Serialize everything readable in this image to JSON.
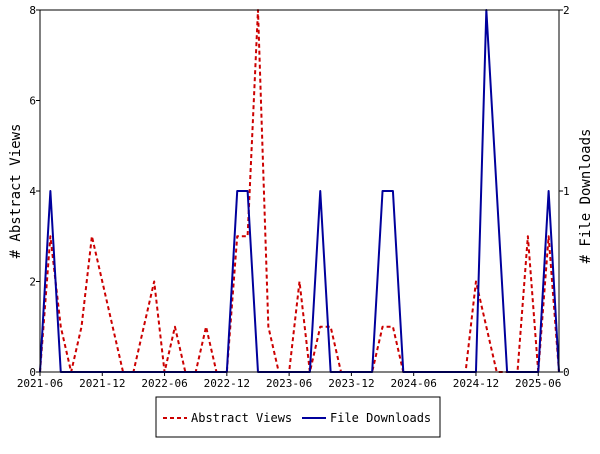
{
  "chart_data": {
    "type": "line",
    "title": "",
    "xlabel": "",
    "ylabel_left": "# Abstract Views",
    "ylabel_right": "# File Downloads",
    "x_tick_labels": [
      "2021-06",
      "2021-12",
      "2022-06",
      "2022-12",
      "2023-06",
      "2023-12",
      "2024-06",
      "2024-12",
      "2025-06"
    ],
    "ylim_left": [
      0,
      8
    ],
    "ylim_right": [
      0,
      2
    ],
    "y_ticks_left": [
      "0",
      "2",
      "4",
      "6",
      "8"
    ],
    "y_ticks_right": [
      "0",
      "1",
      "2"
    ],
    "grid": false,
    "legend_position": "bottom",
    "series": [
      {
        "name": "Abstract Views",
        "axis": "left",
        "color": "#cc0000",
        "dash": true,
        "points": [
          [
            "2021-06",
            0
          ],
          [
            "2021-07",
            3
          ],
          [
            "2021-08",
            1
          ],
          [
            "2021-09",
            0
          ],
          [
            "2021-10",
            1
          ],
          [
            "2021-11",
            3
          ],
          [
            "2021-12",
            2
          ],
          [
            "2022-01",
            1
          ],
          [
            "2022-02",
            0
          ],
          [
            "2022-03",
            0
          ],
          [
            "2022-04",
            1
          ],
          [
            "2022-05",
            2
          ],
          [
            "2022-06",
            0
          ],
          [
            "2022-07",
            1
          ],
          [
            "2022-08",
            0
          ],
          [
            "2022-09",
            0
          ],
          [
            "2022-10",
            1
          ],
          [
            "2022-11",
            0
          ],
          [
            "2022-12",
            0
          ],
          [
            "2023-01",
            3
          ],
          [
            "2023-02",
            3
          ],
          [
            "2023-03",
            8
          ],
          [
            "2023-04",
            1
          ],
          [
            "2023-05",
            0
          ],
          [
            "2023-06",
            0
          ],
          [
            "2023-07",
            2
          ],
          [
            "2023-08",
            0
          ],
          [
            "2023-09",
            1
          ],
          [
            "2023-10",
            1
          ],
          [
            "2023-11",
            0
          ],
          [
            "2023-12",
            0
          ],
          [
            "2024-01",
            0
          ],
          [
            "2024-02",
            0
          ],
          [
            "2024-03",
            1
          ],
          [
            "2024-04",
            1
          ],
          [
            "2024-05",
            0
          ],
          [
            "2024-06",
            0
          ],
          [
            "2024-07",
            0
          ],
          [
            "2024-08",
            0
          ],
          [
            "2024-09",
            0
          ],
          [
            "2024-10",
            0
          ],
          [
            "2024-11",
            0
          ],
          [
            "2024-12",
            2
          ],
          [
            "2025-01",
            1
          ],
          [
            "2025-02",
            0
          ],
          [
            "2025-03",
            0
          ],
          [
            "2025-04",
            0
          ],
          [
            "2025-05",
            3
          ],
          [
            "2025-06",
            0
          ],
          [
            "2025-07",
            3
          ],
          [
            "2025-08",
            0
          ]
        ]
      },
      {
        "name": "File Downloads",
        "axis": "right",
        "color": "#00009c",
        "dash": false,
        "points": [
          [
            "2021-06",
            0
          ],
          [
            "2021-07",
            1
          ],
          [
            "2021-08",
            0
          ],
          [
            "2021-09",
            0
          ],
          [
            "2021-10",
            0
          ],
          [
            "2021-11",
            0
          ],
          [
            "2021-12",
            0
          ],
          [
            "2022-01",
            0
          ],
          [
            "2022-02",
            0
          ],
          [
            "2022-03",
            0
          ],
          [
            "2022-04",
            0
          ],
          [
            "2022-05",
            0
          ],
          [
            "2022-06",
            0
          ],
          [
            "2022-07",
            0
          ],
          [
            "2022-08",
            0
          ],
          [
            "2022-09",
            0
          ],
          [
            "2022-10",
            0
          ],
          [
            "2022-11",
            0
          ],
          [
            "2022-12",
            0
          ],
          [
            "2023-01",
            1
          ],
          [
            "2023-02",
            1
          ],
          [
            "2023-03",
            0
          ],
          [
            "2023-04",
            0
          ],
          [
            "2023-05",
            0
          ],
          [
            "2023-06",
            0
          ],
          [
            "2023-07",
            0
          ],
          [
            "2023-08",
            0
          ],
          [
            "2023-09",
            1
          ],
          [
            "2023-10",
            0
          ],
          [
            "2023-11",
            0
          ],
          [
            "2023-12",
            0
          ],
          [
            "2024-01",
            0
          ],
          [
            "2024-02",
            0
          ],
          [
            "2024-03",
            1
          ],
          [
            "2024-04",
            1
          ],
          [
            "2024-05",
            0
          ],
          [
            "2024-06",
            0
          ],
          [
            "2024-07",
            0
          ],
          [
            "2024-08",
            0
          ],
          [
            "2024-09",
            0
          ],
          [
            "2024-10",
            0
          ],
          [
            "2024-11",
            0
          ],
          [
            "2024-12",
            0
          ],
          [
            "2025-01",
            2
          ],
          [
            "2025-02",
            1
          ],
          [
            "2025-03",
            0
          ],
          [
            "2025-04",
            0
          ],
          [
            "2025-05",
            0
          ],
          [
            "2025-06",
            0
          ],
          [
            "2025-07",
            1
          ],
          [
            "2025-08",
            0
          ]
        ]
      }
    ]
  }
}
